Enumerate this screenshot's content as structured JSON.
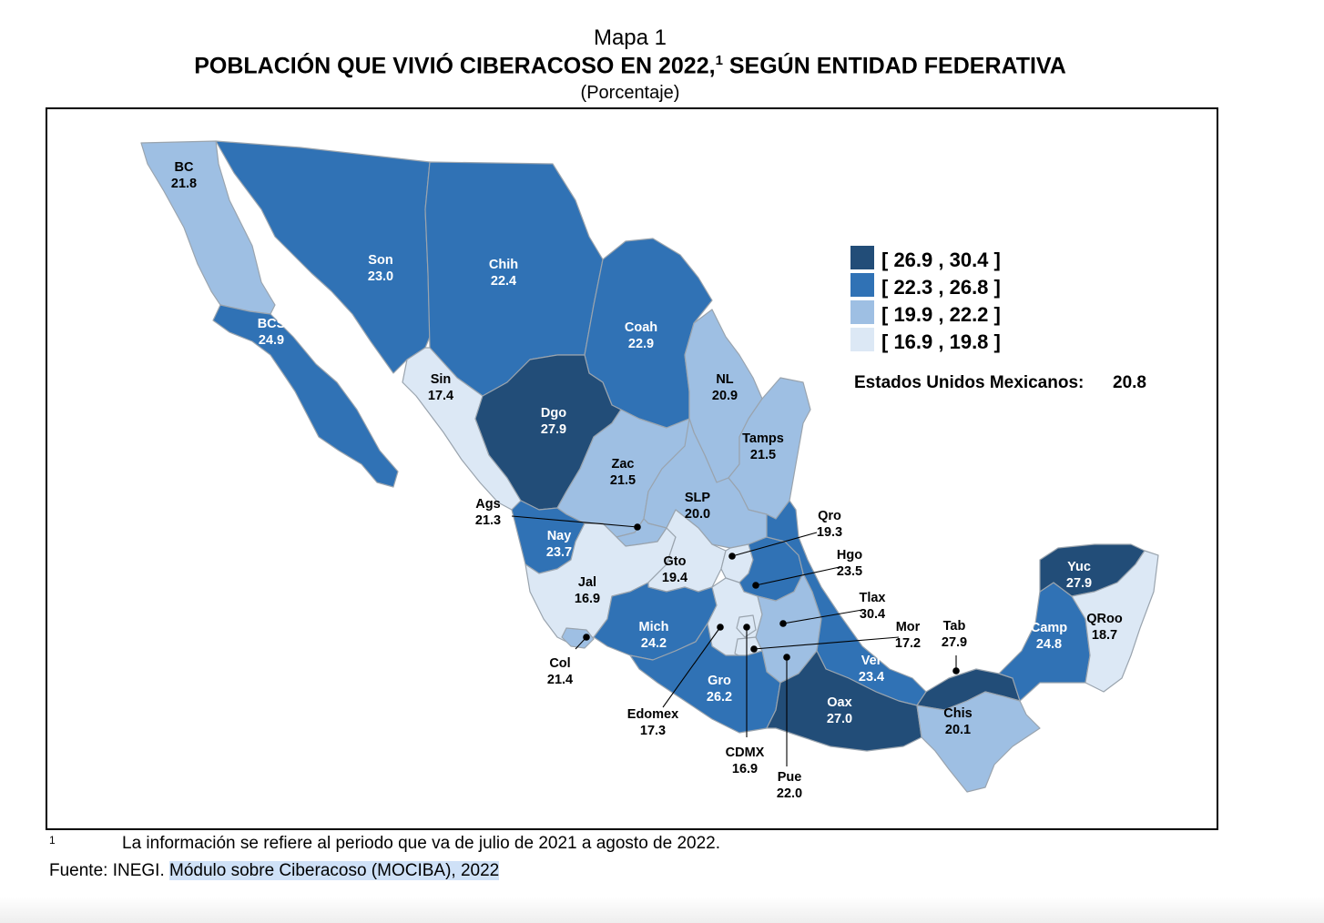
{
  "header": {
    "map_number": "Mapa 1",
    "title": "POBLACIÓN QUE VIVIÓ CIBERACOSO EN 2022,",
    "title_footnote_mark": "1",
    "title_tail": "SEGÚN ENTIDAD FEDERATIVA",
    "unit": "(Porcentaje)"
  },
  "legend": {
    "ranges": [
      {
        "label": "[ 26.9 , 30.4 ]",
        "color": "#224d78"
      },
      {
        "label": "[ 22.3 , 26.8 ]",
        "color": "#3072b5"
      },
      {
        "label": "[ 19.9 , 22.2 ]",
        "color": "#9ebfe3"
      },
      {
        "label": "[ 16.9 , 19.8 ]",
        "color": "#dce8f5"
      }
    ],
    "national_label": "Estados Unidos Mexicanos:",
    "national_value": "20.8"
  },
  "states": {
    "bc": {
      "abbr": "BC",
      "value": "21.8"
    },
    "bcs": {
      "abbr": "BCS",
      "value": "24.9"
    },
    "son": {
      "abbr": "Son",
      "value": "23.0"
    },
    "chih": {
      "abbr": "Chih",
      "value": "22.4"
    },
    "coah": {
      "abbr": "Coah",
      "value": "22.9"
    },
    "nl": {
      "abbr": "NL",
      "value": "20.9"
    },
    "tamps": {
      "abbr": "Tamps",
      "value": "21.5"
    },
    "sin": {
      "abbr": "Sin",
      "value": "17.4"
    },
    "dgo": {
      "abbr": "Dgo",
      "value": "27.9"
    },
    "zac": {
      "abbr": "Zac",
      "value": "21.5"
    },
    "slp": {
      "abbr": "SLP",
      "value": "20.0"
    },
    "ags": {
      "abbr": "Ags",
      "value": "21.3"
    },
    "nay": {
      "abbr": "Nay",
      "value": "23.7"
    },
    "jal": {
      "abbr": "Jal",
      "value": "16.9"
    },
    "gto": {
      "abbr": "Gto",
      "value": "19.4"
    },
    "qro": {
      "abbr": "Qro",
      "value": "19.3"
    },
    "hgo": {
      "abbr": "Hgo",
      "value": "23.5"
    },
    "tlax": {
      "abbr": "Tlax",
      "value": "30.4"
    },
    "mor": {
      "abbr": "Mor",
      "value": "17.2"
    },
    "col": {
      "abbr": "Col",
      "value": "21.4"
    },
    "mich": {
      "abbr": "Mich",
      "value": "24.2"
    },
    "edomex": {
      "abbr": "Edomex",
      "value": "17.3"
    },
    "gro": {
      "abbr": "Gro",
      "value": "26.2"
    },
    "cdmx": {
      "abbr": "CDMX",
      "value": "16.9"
    },
    "pue": {
      "abbr": "Pue",
      "value": "22.0"
    },
    "oax": {
      "abbr": "Oax",
      "value": "27.0"
    },
    "ver": {
      "abbr": "Ver",
      "value": "23.4"
    },
    "tab": {
      "abbr": "Tab",
      "value": "27.9"
    },
    "chis": {
      "abbr": "Chis",
      "value": "20.1"
    },
    "camp": {
      "abbr": "Camp",
      "value": "24.8"
    },
    "yuc": {
      "abbr": "Yuc",
      "value": "27.9"
    },
    "qroo": {
      "abbr": "QRoo",
      "value": "18.7"
    }
  },
  "footnote": {
    "mark": "1",
    "text": "La información se refiere al periodo que va de julio de 2021 a agosto de 2022."
  },
  "source": {
    "prefix": "Fuente: INEGI.",
    "highlighted": "Módulo sobre Ciberacoso (MOCIBA), 2022"
  }
}
